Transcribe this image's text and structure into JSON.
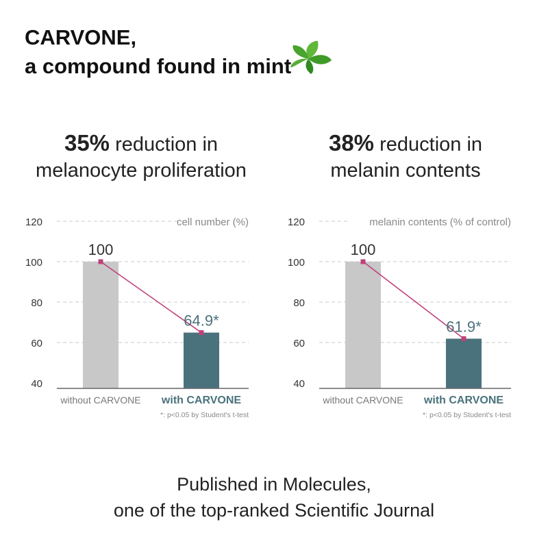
{
  "title": {
    "line1": "CARVONE,",
    "line2": "a compound found in mint"
  },
  "colors": {
    "control_bar": "#c8c8c8",
    "treated_bar": "#4a727c",
    "line": "#c0407a",
    "treated_label": "#4a727c",
    "grid": "#c8c8c8",
    "axis": "#666666"
  },
  "chart_data": [
    {
      "type": "bar",
      "headline_value": "35%",
      "headline_text_1": "reduction in",
      "headline_text_2": "melanocyte proliferation",
      "ylabel": "cell number (%)",
      "ylim": [
        40,
        120
      ],
      "yticks": [
        40,
        60,
        80,
        100,
        120
      ],
      "grid": true,
      "categories": [
        "without CARVONE",
        "with CARVONE"
      ],
      "values": [
        100,
        64.9
      ],
      "data_labels": [
        "100",
        "64.9*"
      ],
      "footnote": "*: p<0.05 by Student's t-test"
    },
    {
      "type": "bar",
      "headline_value": "38%",
      "headline_text_1": "reduction in",
      "headline_text_2": "melanin contents",
      "ylabel": "melanin contents (% of control)",
      "ylim": [
        40,
        120
      ],
      "yticks": [
        40,
        60,
        80,
        100,
        120
      ],
      "grid": true,
      "categories": [
        "without CARVONE",
        "with CARVONE"
      ],
      "values": [
        100,
        61.9
      ],
      "data_labels": [
        "100",
        "61.9*"
      ],
      "footnote": "*: p<0.05 by Student's t-test"
    }
  ],
  "footer": {
    "line1": "Published in Molecules,",
    "line2": "one of the top-ranked Scientific Journal"
  }
}
